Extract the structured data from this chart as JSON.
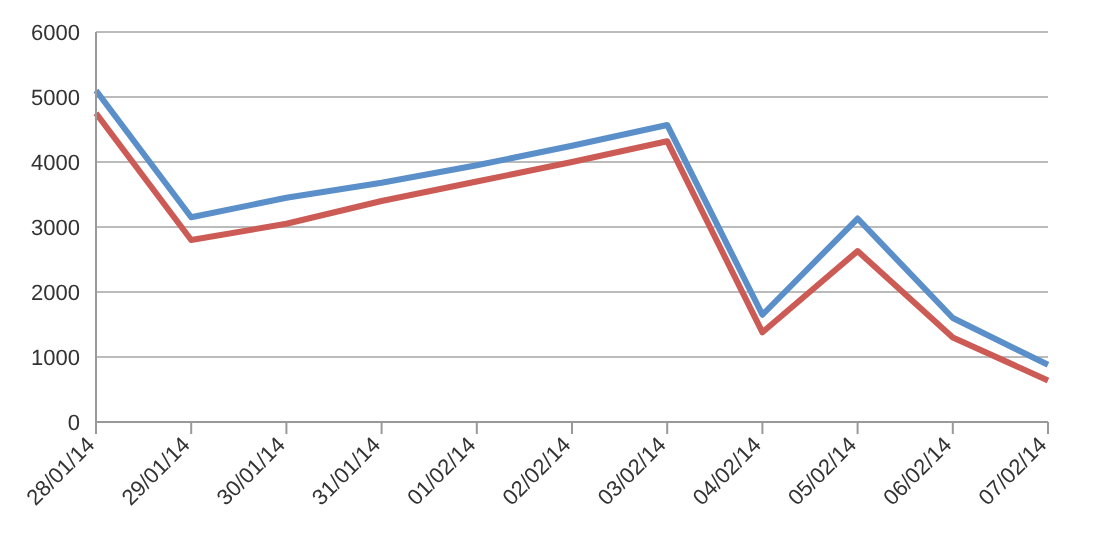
{
  "chart_data": {
    "type": "line",
    "categories": [
      "28/01/14",
      "29/01/14",
      "30/01/14",
      "31/01/14",
      "01/02/14",
      "02/02/14",
      "03/02/14",
      "04/02/14",
      "05/02/14",
      "06/02/14",
      "07/02/14"
    ],
    "series": [
      {
        "color": "#5b8fc9",
        "values": [
          5100,
          3150,
          3450,
          3680,
          3950,
          4250,
          4570,
          1650,
          3130,
          1600,
          880
        ]
      },
      {
        "color": "#cc5b55",
        "values": [
          4750,
          2800,
          3050,
          3400,
          3700,
          4000,
          4320,
          1380,
          2630,
          1300,
          640
        ]
      }
    ],
    "ylim": [
      0,
      6000
    ],
    "yticks": [
      0,
      1000,
      2000,
      3000,
      4000,
      5000,
      6000
    ],
    "grid": "y",
    "legend": false,
    "marker": "none",
    "line_style": "solid"
  }
}
